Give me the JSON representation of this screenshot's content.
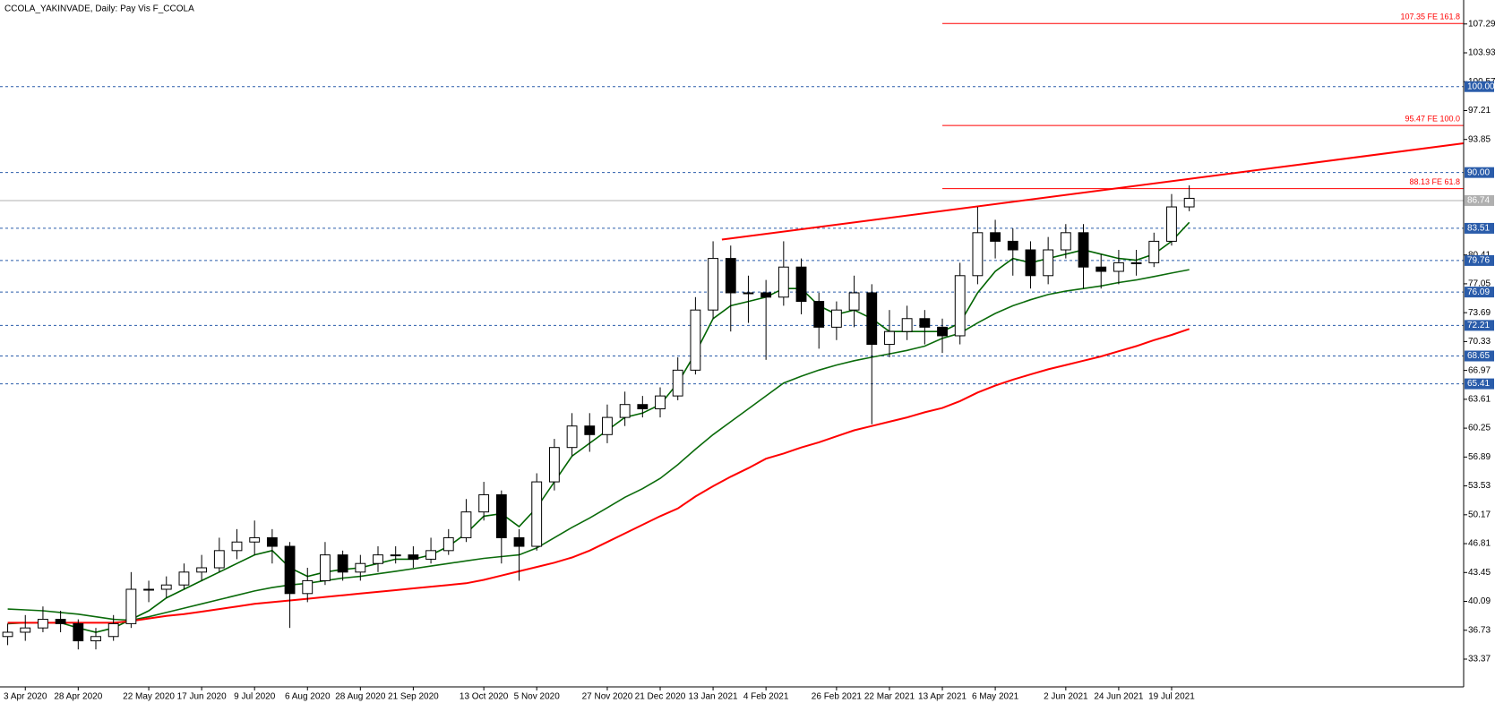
{
  "chart_data": {
    "type": "candlestick",
    "title": "CCOLA_YAKINVADE, Daily:  Pay Vis F_CCOLA",
    "categories": [
      null,
      "3 Apr 2020",
      null,
      null,
      "28 Apr 2020",
      null,
      null,
      null,
      "22 May 2020",
      null,
      null,
      "17 Jun 2020",
      null,
      null,
      "9 Jul 2020",
      null,
      null,
      "6 Aug 2020",
      null,
      null,
      "28 Aug 2020",
      null,
      null,
      "21 Sep 2020",
      null,
      null,
      null,
      "13 Oct 2020",
      null,
      null,
      "5 Nov 2020",
      null,
      null,
      null,
      "27 Nov 2020",
      null,
      null,
      "21 Dec 2020",
      null,
      null,
      "13 Jan 2021",
      null,
      null,
      "4 Feb 2021",
      null,
      null,
      null,
      "26 Feb 2021",
      null,
      null,
      "22 Mar 2021",
      null,
      null,
      "13 Apr 2021",
      null,
      null,
      "6 May 2021",
      null,
      null,
      null,
      "2 Jun 2021",
      null,
      null,
      "24 Jun 2021",
      null,
      null,
      "19 Jul 2021",
      null
    ],
    "open": [
      36,
      36.5,
      37,
      38,
      37.5,
      35.5,
      36,
      37.5,
      41.5,
      41.5,
      42,
      43.5,
      44,
      46,
      47,
      47.5,
      46.5,
      41,
      42.5,
      45.5,
      43.5,
      44.5,
      45.5,
      45.5,
      45,
      46,
      47.5,
      50.5,
      52.5,
      47.5,
      46.5,
      54,
      58,
      60.5,
      59.5,
      61.5,
      63,
      62.5,
      64,
      67,
      74,
      80,
      76,
      76,
      75.5,
      79,
      75,
      72,
      74,
      76,
      70,
      71.5,
      73,
      72,
      71,
      78,
      83,
      82,
      81,
      78,
      81,
      83,
      79,
      78.5,
      79.5,
      79.5,
      82,
      86
    ],
    "high": [
      37.5,
      38.5,
      39.5,
      39,
      38,
      37,
      38.5,
      43.5,
      42.5,
      43,
      44.5,
      45.5,
      47.5,
      48.5,
      49.5,
      48.5,
      47,
      44,
      47,
      46,
      45.5,
      46.5,
      46.5,
      46.5,
      47.5,
      48.5,
      52,
      54,
      53,
      48.5,
      55,
      59,
      62,
      62,
      63,
      64.5,
      64,
      65,
      68.5,
      75.5,
      82,
      81.5,
      78,
      77.5,
      82,
      80,
      76,
      75,
      78,
      77,
      74,
      74.5,
      74,
      73,
      79.5,
      86,
      84.5,
      83.5,
      82,
      82.5,
      84,
      84,
      80.5,
      81,
      81,
      83,
      87.5,
      88.5
    ],
    "low": [
      35,
      35.5,
      36.5,
      36.5,
      34.5,
      34.5,
      35.5,
      37,
      40,
      40.5,
      41.5,
      42.5,
      43.5,
      45,
      45.5,
      44.5,
      37,
      40,
      42,
      42.5,
      42.5,
      43.5,
      44.5,
      44,
      44.5,
      45.5,
      47,
      49.5,
      44.5,
      42.5,
      46,
      53,
      57,
      57.5,
      58.5,
      60.5,
      61.5,
      61.5,
      63.5,
      66.5,
      73,
      71.5,
      72.5,
      68.2,
      74.5,
      73.5,
      69.5,
      70.5,
      72,
      60.7,
      68.5,
      70.5,
      70,
      69,
      70,
      77,
      80,
      78,
      76.5,
      77,
      80,
      76.5,
      76.5,
      77,
      78,
      79,
      81.5,
      85.5
    ],
    "close": [
      36.5,
      37,
      38,
      37.5,
      35.5,
      36,
      37.5,
      41.5,
      41.5,
      42,
      43.5,
      44,
      46,
      47,
      47.5,
      46.5,
      41,
      42.5,
      45.5,
      43.5,
      44.5,
      45.5,
      45.5,
      45,
      46,
      47.5,
      50.5,
      52.5,
      47.5,
      46.5,
      54,
      58,
      60.5,
      59.5,
      61.5,
      63,
      62.5,
      64,
      67,
      74,
      80,
      76,
      76,
      75.5,
      79,
      75,
      72,
      74,
      76,
      70,
      71.5,
      73,
      72,
      71,
      78,
      83,
      82,
      81,
      78,
      81,
      83,
      79,
      78.5,
      79.5,
      79.5,
      82,
      86,
      87
    ],
    "candle_color": "#000000",
    "series": [
      {
        "color": "#006400",
        "values": [
          37.5,
          37.6,
          37.6,
          37.6,
          37,
          36.5,
          37,
          38,
          39,
          40.5,
          41.5,
          42.5,
          43.5,
          44.5,
          45.5,
          46,
          44,
          43,
          43.5,
          43.8,
          44,
          44.5,
          45,
          45,
          45.5,
          46.5,
          48,
          50,
          50.3,
          48.8,
          51,
          54,
          57,
          58.5,
          60,
          61.5,
          62,
          63,
          65.5,
          69,
          73,
          74.5,
          75,
          75.5,
          76.5,
          76.5,
          74.5,
          73.5,
          74,
          73,
          71.5,
          71.5,
          71.5,
          71.5,
          72.5,
          76,
          78.5,
          80,
          79.5,
          80,
          80.5,
          81,
          80.5,
          80,
          79.8,
          80.5,
          82,
          84.2
        ]
      },
      {
        "color": "#0b6b0b",
        "values": [
          39.2,
          39.1,
          39,
          38.8,
          38.6,
          38.3,
          38,
          37.9,
          38.3,
          38.8,
          39.3,
          39.8,
          40.3,
          40.8,
          41.3,
          41.7,
          42,
          42.2,
          42.5,
          42.8,
          43,
          43.3,
          43.6,
          43.9,
          44.2,
          44.5,
          44.8,
          45.1,
          45.3,
          45.5,
          46.3,
          47.5,
          48.7,
          49.8,
          51,
          52.2,
          53.2,
          54.4,
          56,
          57.8,
          59.5,
          61,
          62.5,
          64,
          65.5,
          66.3,
          67,
          67.6,
          68.1,
          68.5,
          68.9,
          69.3,
          69.8,
          70.7,
          71.3,
          72.5,
          73.6,
          74.5,
          75.2,
          75.8,
          76.2,
          76.5,
          76.8,
          77.2,
          77.5,
          77.9,
          78.3,
          78.7
        ]
      },
      {
        "color": "#ff0000",
        "values": [
          37.6,
          37.6,
          37.6,
          37.6,
          37.6,
          37.6,
          37.6,
          37.8,
          38.1,
          38.4,
          38.6,
          38.9,
          39.2,
          39.5,
          39.8,
          40,
          40.2,
          40.4,
          40.6,
          40.8,
          41,
          41.2,
          41.4,
          41.6,
          41.8,
          42,
          42.2,
          42.6,
          43.1,
          43.6,
          44.1,
          44.6,
          45.2,
          46,
          47,
          48,
          49,
          50,
          50.9,
          52.3,
          53.5,
          54.6,
          55.6,
          56.7,
          57.3,
          58,
          58.6,
          59.3,
          60,
          60.5,
          61,
          61.5,
          62.1,
          62.6,
          63.4,
          64.4,
          65.2,
          65.9,
          66.5,
          67.1,
          67.6,
          68.1,
          68.6,
          69.2,
          69.8,
          70.5,
          71.1,
          71.8
        ]
      }
    ],
    "ylim": [
      30.14,
      110.08
    ],
    "yticks": [
      33.37,
      36.73,
      40.09,
      43.45,
      46.81,
      50.17,
      53.53,
      56.89,
      60.25,
      63.61,
      66.97,
      70.33,
      73.69,
      77.05,
      80.41,
      93.85,
      97.21,
      100.57,
      103.93,
      107.29
    ],
    "levels": [
      {
        "value": 100,
        "label": "100.00"
      },
      {
        "value": 90,
        "label": "90.00"
      },
      83.51,
      79.76,
      76.09,
      72.21,
      68.65,
      65.41
    ],
    "level_color": "#2a5caa",
    "current_price": 86.74,
    "fib_levels": [
      {
        "value": 107.35,
        "label": "107.35 FE 161.8"
      },
      {
        "value": 95.47,
        "label": "95.47 FE 100.0"
      },
      {
        "value": 88.13,
        "label": "88.13 FE 61.8"
      }
    ],
    "fib_color": "#ff0000",
    "trendline": {
      "start": 82.2,
      "end": 93.4,
      "color": "#ff0000"
    }
  }
}
